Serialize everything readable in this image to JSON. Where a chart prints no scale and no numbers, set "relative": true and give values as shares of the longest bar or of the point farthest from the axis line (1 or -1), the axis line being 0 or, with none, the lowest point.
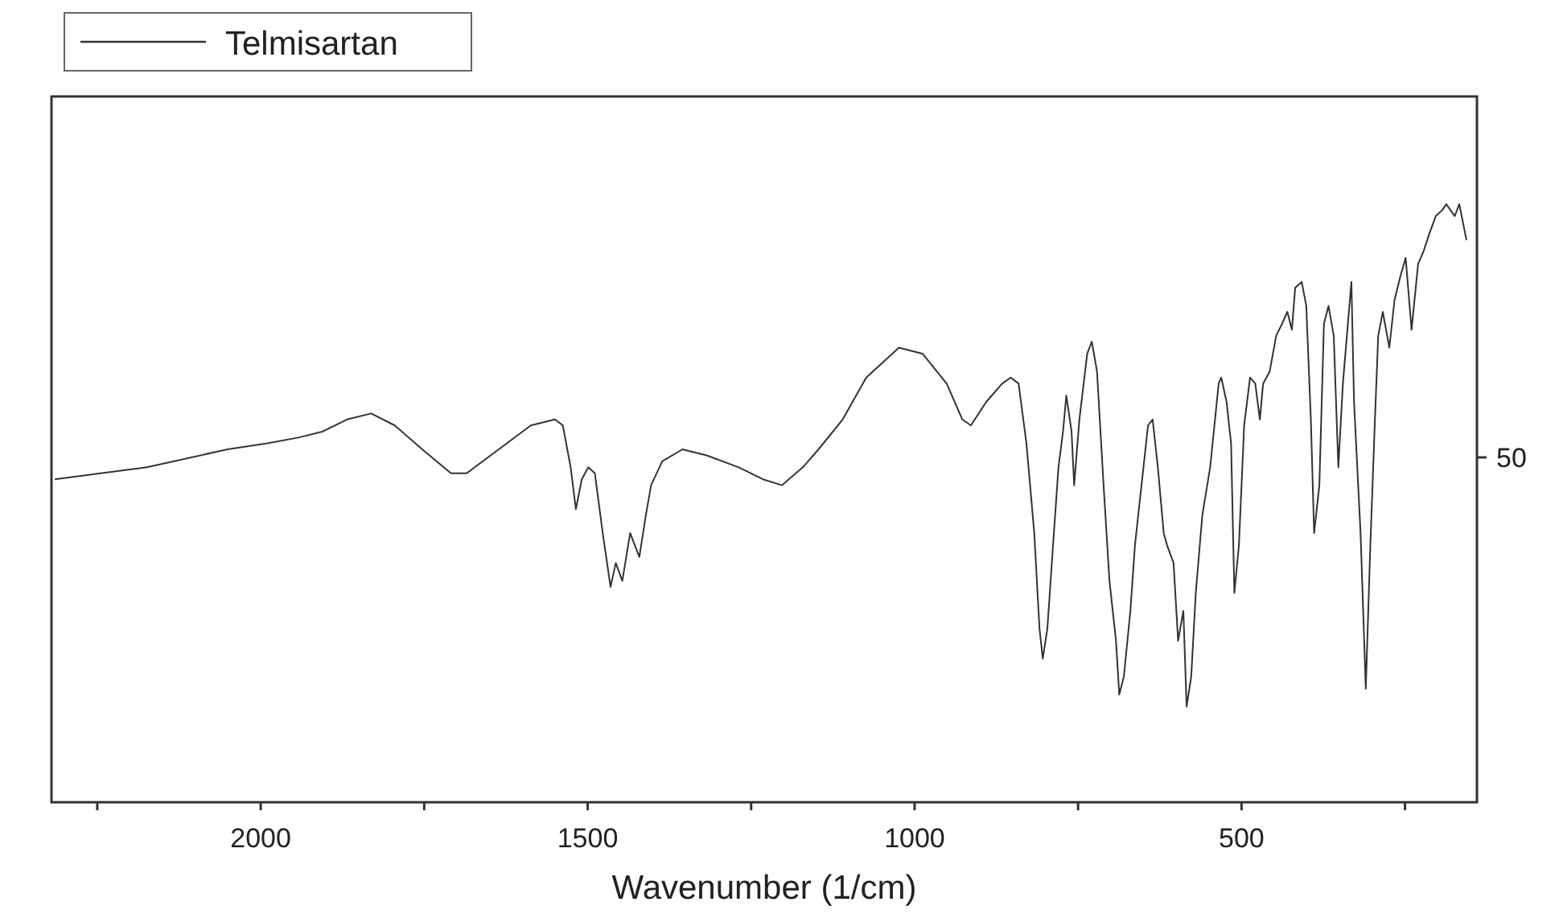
{
  "chart_data": {
    "type": "line",
    "xlabel": "Wavenumber (1/cm)",
    "relative": true,
    "xlim": [
      2320,
      140
    ],
    "xticks": [
      {
        "value": 2250,
        "label": null
      },
      2000,
      {
        "value": 1750,
        "label": null
      },
      1500,
      {
        "value": 1250,
        "label": null
      },
      1000,
      {
        "value": 750,
        "label": null
      },
      500,
      {
        "value": 250,
        "label": null
      }
    ],
    "legend": "top left",
    "line_style": "solid",
    "grid": false,
    "annotations": [
      "50"
    ],
    "series": [
      {
        "name": "Telmisartan",
        "color": "#333333",
        "x": [
          2315,
          2174,
          2051,
          1990,
          1941,
          1905,
          1868,
          1831,
          1795,
          1753,
          1709,
          1685,
          1636,
          1587,
          1550,
          1538,
          1526,
          1518,
          1509,
          1499,
          1489,
          1477,
          1465,
          1457,
          1447,
          1435,
          1421,
          1411,
          1403,
          1386,
          1355,
          1318,
          1269,
          1232,
          1203,
          1171,
          1147,
          1110,
          1074,
          1024,
          988,
          951,
          927,
          914,
          890,
          866,
          853,
          841,
          829,
          817,
          809,
          804,
          797,
          787,
          780,
          773,
          768,
          760,
          756,
          748,
          736,
          729,
          721,
          711,
          702,
          692,
          687,
          680,
          670,
          663,
          653,
          643,
          636,
          628,
          619,
          614,
          604,
          597,
          589,
          584,
          577,
          570,
          560,
          548,
          535,
          531,
          523,
          516,
          511,
          504,
          496,
          487,
          479,
          472,
          467,
          457,
          447,
          438,
          430,
          423,
          418,
          408,
          401,
          394,
          389,
          381,
          374,
          367,
          359,
          352,
          345,
          332,
          328,
          318,
          310,
          303,
          296,
          291,
          284,
          274,
          266,
          257,
          249,
          240,
          230,
          222,
          213,
          203,
          193,
          187,
          174,
          167,
          156
        ],
        "values": [
          0.54,
          0.56,
          0.59,
          0.6,
          0.61,
          0.62,
          0.64,
          0.65,
          0.63,
          0.59,
          0.55,
          0.55,
          0.59,
          0.63,
          0.64,
          0.63,
          0.56,
          0.49,
          0.54,
          0.56,
          0.55,
          0.45,
          0.36,
          0.4,
          0.37,
          0.45,
          0.41,
          0.48,
          0.53,
          0.57,
          0.59,
          0.58,
          0.56,
          0.54,
          0.53,
          0.56,
          0.59,
          0.64,
          0.71,
          0.76,
          0.75,
          0.7,
          0.64,
          0.63,
          0.67,
          0.7,
          0.71,
          0.7,
          0.6,
          0.45,
          0.29,
          0.24,
          0.29,
          0.45,
          0.56,
          0.62,
          0.68,
          0.62,
          0.53,
          0.64,
          0.75,
          0.77,
          0.72,
          0.53,
          0.37,
          0.27,
          0.18,
          0.21,
          0.32,
          0.43,
          0.53,
          0.63,
          0.64,
          0.56,
          0.45,
          0.43,
          0.4,
          0.27,
          0.32,
          0.16,
          0.21,
          0.35,
          0.48,
          0.56,
          0.7,
          0.71,
          0.67,
          0.6,
          0.35,
          0.43,
          0.63,
          0.71,
          0.7,
          0.64,
          0.7,
          0.72,
          0.78,
          0.8,
          0.82,
          0.79,
          0.86,
          0.87,
          0.83,
          0.64,
          0.45,
          0.53,
          0.8,
          0.83,
          0.78,
          0.56,
          0.7,
          0.87,
          0.67,
          0.45,
          0.19,
          0.43,
          0.64,
          0.78,
          0.82,
          0.76,
          0.84,
          0.88,
          0.91,
          0.79,
          0.9,
          0.92,
          0.95,
          0.98,
          0.99,
          1,
          0.98,
          1,
          0.94
        ]
      }
    ]
  }
}
